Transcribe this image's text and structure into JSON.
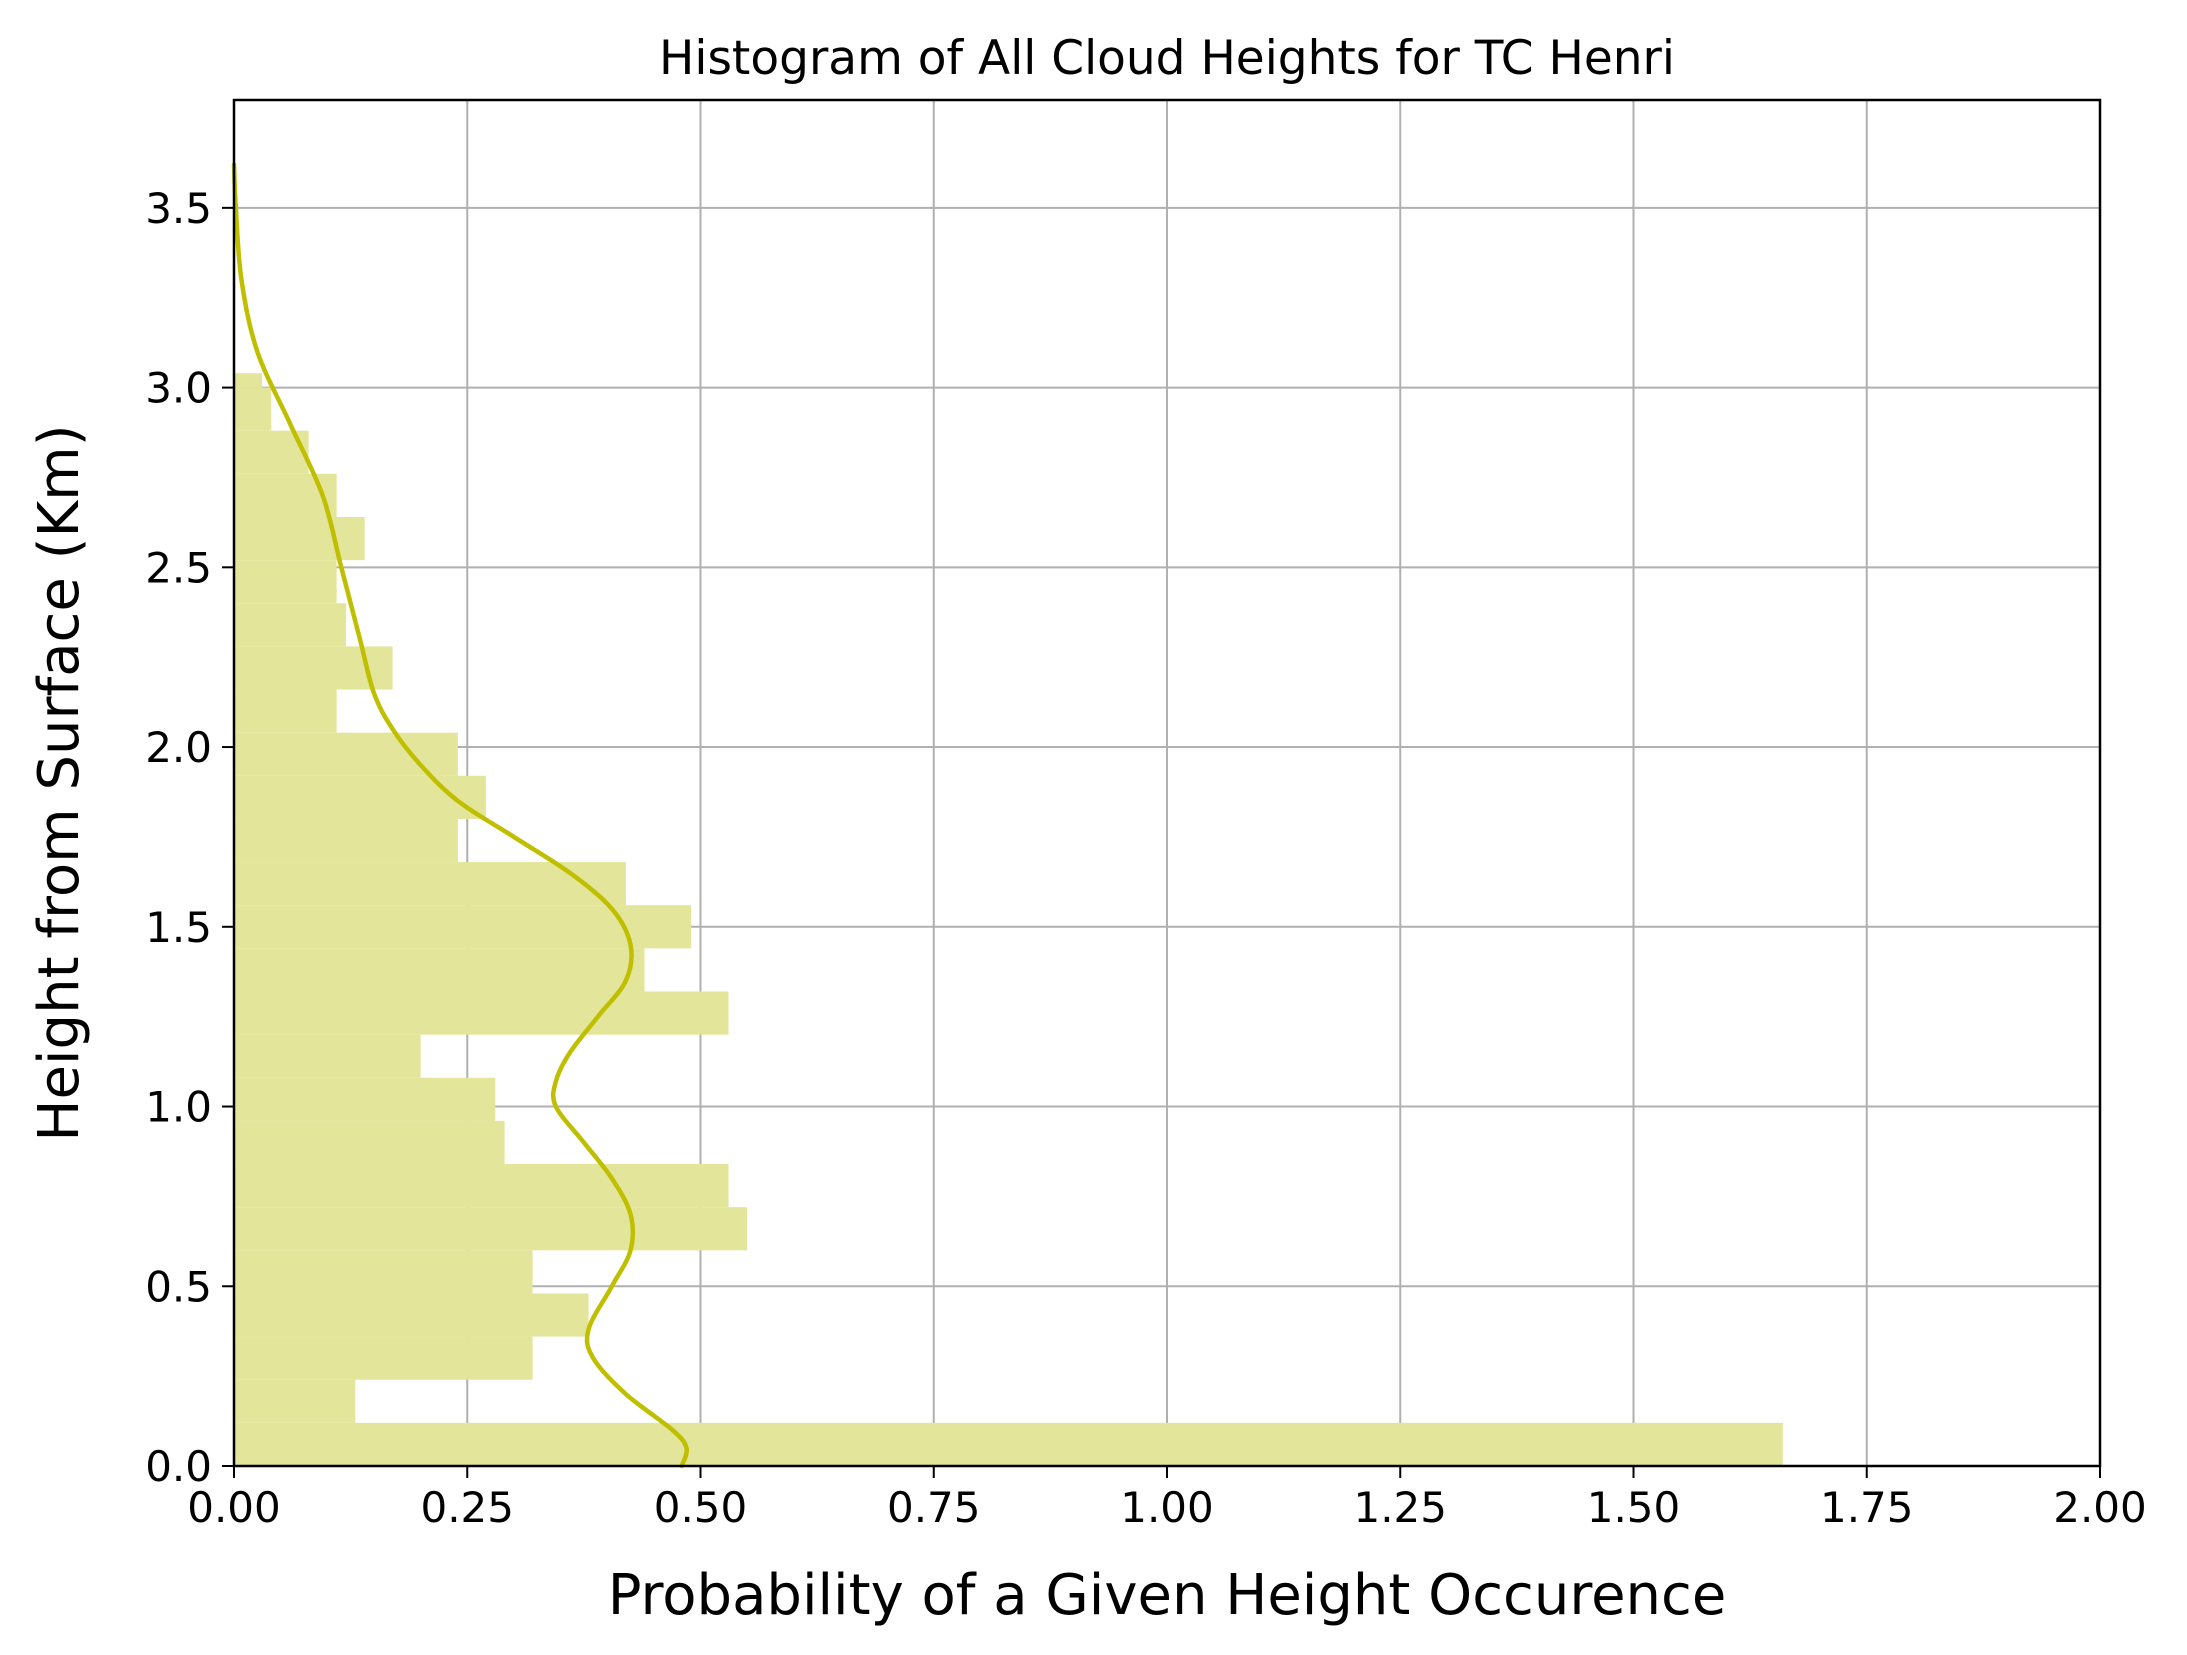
{
  "chart_data": {
    "type": "bar",
    "orientation": "horizontal",
    "title": "Histogram of All Cloud Heights for TC Henri",
    "xlabel": "Probability of a Given Height Occurence",
    "ylabel": "Height from Surface (Km)",
    "xlim": [
      0,
      2.0
    ],
    "ylim": [
      0,
      3.8
    ],
    "xticks": [
      0.0,
      0.25,
      0.5,
      0.75,
      1.0,
      1.25,
      1.5,
      1.75,
      2.0
    ],
    "xtick_labels": [
      "0.00",
      "0.25",
      "0.50",
      "0.75",
      "1.00",
      "1.25",
      "1.50",
      "1.75",
      "2.00"
    ],
    "yticks": [
      0.0,
      0.5,
      1.0,
      1.5,
      2.0,
      2.5,
      3.0,
      3.5
    ],
    "ytick_labels": [
      "0.0",
      "0.5",
      "1.0",
      "1.5",
      "2.0",
      "2.5",
      "3.0",
      "3.5"
    ],
    "grid": true,
    "bar_color": "#e3e59a",
    "kde_color": "#bfbf00",
    "histogram": {
      "bin_edges": [
        0.0,
        0.12,
        0.24,
        0.36,
        0.48,
        0.6,
        0.72,
        0.84,
        0.96,
        1.08,
        1.2,
        1.32,
        1.44,
        1.56,
        1.68,
        1.8,
        1.92,
        2.04,
        2.16,
        2.28,
        2.4,
        2.52,
        2.64,
        2.76,
        2.88,
        3.0,
        3.04
      ],
      "values": [
        1.66,
        0.13,
        0.32,
        0.38,
        0.32,
        0.55,
        0.53,
        0.29,
        0.28,
        0.2,
        0.53,
        0.44,
        0.49,
        0.42,
        0.24,
        0.27,
        0.24,
        0.11,
        0.17,
        0.12,
        0.11,
        0.14,
        0.11,
        0.08,
        0.04,
        0.03
      ]
    },
    "kde": {
      "height": [
        0.0,
        0.05,
        0.1,
        0.2,
        0.3,
        0.38,
        0.5,
        0.6,
        0.7,
        0.8,
        0.9,
        1.0,
        1.07,
        1.15,
        1.25,
        1.35,
        1.45,
        1.55,
        1.65,
        1.75,
        1.85,
        1.95,
        2.05,
        2.15,
        2.3,
        2.5,
        2.7,
        2.9,
        3.1,
        3.3,
        3.5,
        3.62
      ],
      "probability": [
        0.48,
        0.485,
        0.47,
        0.42,
        0.385,
        0.38,
        0.405,
        0.425,
        0.425,
        0.405,
        0.375,
        0.345,
        0.345,
        0.36,
        0.39,
        0.42,
        0.425,
        0.405,
        0.36,
        0.3,
        0.24,
        0.2,
        0.17,
        0.15,
        0.135,
        0.115,
        0.095,
        0.06,
        0.025,
        0.008,
        0.002,
        0.0
      ]
    }
  }
}
